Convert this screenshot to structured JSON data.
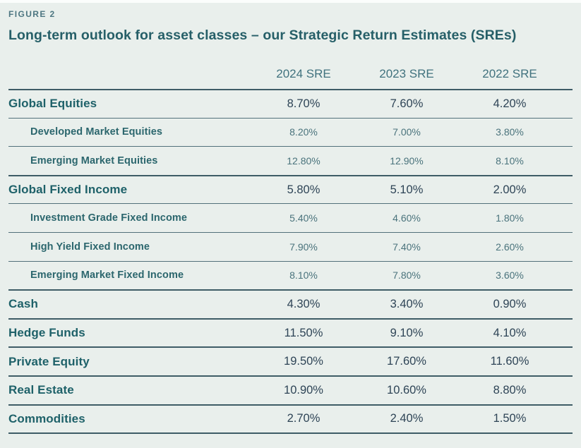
{
  "figure_label": "FIGURE 2",
  "colors": {
    "background": "#e9efec",
    "title_teal": "#265f68",
    "label_teal": "#1e6169",
    "sub_label_teal": "#2b666d",
    "value_dark": "#2e4456",
    "sub_value_teal": "#4a737c",
    "header_text": "#41727e",
    "rule_dark": "#3e5c66",
    "rule_light": "#52707a"
  },
  "chart_data": {
    "type": "table",
    "title": "Long-term outlook for asset classes – our Strategic Return Estimates (SREs)",
    "columns": [
      "2024 SRE",
      "2023 SRE",
      "2022 SRE"
    ],
    "rows": [
      {
        "label": "Global Equities",
        "level": "main",
        "values": [
          "8.70%",
          "7.60%",
          "4.20%"
        ]
      },
      {
        "label": "Developed Market Equities",
        "level": "sub",
        "values": [
          "8.20%",
          "7.00%",
          "3.80%"
        ]
      },
      {
        "label": "Emerging Market Equities",
        "level": "sub",
        "values": [
          "12.80%",
          "12.90%",
          "8.10%"
        ]
      },
      {
        "label": "Global Fixed Income",
        "level": "main",
        "values": [
          "5.80%",
          "5.10%",
          "2.00%"
        ]
      },
      {
        "label": "Investment Grade Fixed Income",
        "level": "sub",
        "values": [
          "5.40%",
          "4.60%",
          "1.80%"
        ]
      },
      {
        "label": "High Yield Fixed Income",
        "level": "sub",
        "values": [
          "7.90%",
          "7.40%",
          "2.60%"
        ]
      },
      {
        "label": "Emerging Market Fixed Income",
        "level": "sub",
        "values": [
          "8.10%",
          "7.80%",
          "3.60%"
        ]
      },
      {
        "label": "Cash",
        "level": "main",
        "values": [
          "4.30%",
          "3.40%",
          "0.90%"
        ]
      },
      {
        "label": "Hedge Funds",
        "level": "main",
        "values": [
          "11.50%",
          "9.10%",
          "4.10%"
        ]
      },
      {
        "label": "Private Equity",
        "level": "main",
        "values": [
          "19.50%",
          "17.60%",
          "11.60%"
        ]
      },
      {
        "label": "Real Estate",
        "level": "main",
        "values": [
          "10.90%",
          "10.60%",
          "8.80%"
        ]
      },
      {
        "label": "Commodities",
        "level": "main",
        "values": [
          "2.70%",
          "2.40%",
          "1.50%"
        ]
      }
    ]
  }
}
